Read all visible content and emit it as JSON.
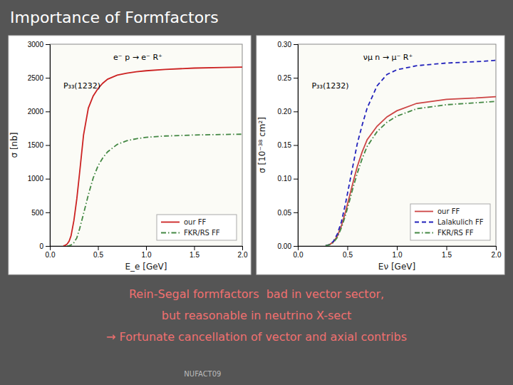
{
  "title": "Importance of Formfactors",
  "annotations": [
    "Rein-Segal formfactors  bad in vector sector,",
    "but reasonable in neutrino X-sect",
    "→ Fortunate cancellation of vector and axial contribs",
    "NUFACT09"
  ],
  "chart_data": [
    {
      "type": "line",
      "xlabel": "E_e [GeV]",
      "ylabel": "σ [nb]",
      "annotations": [
        "e⁻ p → e⁻ R⁺",
        "P₃₃(1232)"
      ],
      "xlim": [
        0,
        2
      ],
      "ylim": [
        0,
        3000
      ],
      "xticks": [
        {
          "value": 0,
          "label": "0.0"
        },
        {
          "value": 0.5,
          "label": "0.5"
        },
        {
          "value": 1,
          "label": "1.0"
        },
        {
          "value": 1.5,
          "label": "1.5"
        },
        {
          "value": 2,
          "label": "2.0"
        }
      ],
      "yticks": [
        0,
        500,
        1000,
        1500,
        2000,
        2500,
        3000
      ],
      "grid": false,
      "legend": "lower right",
      "series": [
        {
          "name": "our FF",
          "color": "#cc2222",
          "line_style": "solid",
          "x": [
            0.14,
            0.16,
            0.18,
            0.2,
            0.22,
            0.25,
            0.28,
            0.31,
            0.35,
            0.4,
            0.45,
            0.5,
            0.55,
            0.6,
            0.7,
            0.8,
            0.9,
            1.0,
            1.2,
            1.5,
            1.8,
            2.0
          ],
          "values": [
            2,
            10,
            30,
            70,
            150,
            380,
            700,
            1100,
            1650,
            2050,
            2230,
            2340,
            2420,
            2480,
            2540,
            2570,
            2590,
            2605,
            2625,
            2645,
            2655,
            2660
          ]
        },
        {
          "name": "FKR/RS FF",
          "color": "#448844",
          "line_style": "dashdot",
          "x": [
            0.18,
            0.2,
            0.22,
            0.25,
            0.28,
            0.31,
            0.35,
            0.4,
            0.45,
            0.5,
            0.55,
            0.6,
            0.7,
            0.8,
            0.9,
            1.0,
            1.2,
            1.5,
            1.8,
            2.0
          ],
          "values": [
            2,
            5,
            15,
            50,
            120,
            260,
            480,
            760,
            1010,
            1190,
            1310,
            1400,
            1510,
            1565,
            1595,
            1615,
            1635,
            1650,
            1658,
            1662
          ]
        }
      ]
    },
    {
      "type": "line",
      "xlabel": "Eν [GeV]",
      "ylabel": "σ [10⁻³⁸ cm²]",
      "annotations": [
        "νμ n → μ⁻ R⁺",
        "P₃₃(1232)"
      ],
      "xlim": [
        0,
        2
      ],
      "ylim": [
        0,
        0.3
      ],
      "xticks": [
        {
          "value": 0,
          "label": "0.0"
        },
        {
          "value": 0.5,
          "label": "0.5"
        },
        {
          "value": 1,
          "label": "1.0"
        },
        {
          "value": 1.5,
          "label": "1.5"
        },
        {
          "value": 2,
          "label": "2.0"
        }
      ],
      "yticks": [
        {
          "value": 0,
          "label": "0.00"
        },
        {
          "value": 0.05,
          "label": "0.05"
        },
        {
          "value": 0.1,
          "label": "0.10"
        },
        {
          "value": 0.15,
          "label": "0.15"
        },
        {
          "value": 0.2,
          "label": "0.20"
        },
        {
          "value": 0.25,
          "label": "0.25"
        },
        {
          "value": 0.3,
          "label": "0.30"
        }
      ],
      "grid": false,
      "legend": "lower right",
      "series": [
        {
          "name": "our FF",
          "color": "#cc4444",
          "line_style": "solid",
          "x": [
            0.28,
            0.32,
            0.36,
            0.4,
            0.44,
            0.48,
            0.52,
            0.56,
            0.6,
            0.65,
            0.7,
            0.8,
            0.9,
            1.0,
            1.2,
            1.5,
            1.8,
            2.0
          ],
          "values": [
            0.0005,
            0.002,
            0.006,
            0.015,
            0.03,
            0.05,
            0.073,
            0.096,
            0.118,
            0.14,
            0.158,
            0.178,
            0.192,
            0.201,
            0.212,
            0.218,
            0.22,
            0.222
          ]
        },
        {
          "name": "Lalakulich FF",
          "color": "#2222bb",
          "line_style": "dashed",
          "x": [
            0.28,
            0.32,
            0.36,
            0.4,
            0.44,
            0.48,
            0.52,
            0.56,
            0.6,
            0.65,
            0.7,
            0.8,
            0.9,
            1.0,
            1.2,
            1.5,
            1.8,
            2.0
          ],
          "values": [
            0.0005,
            0.002,
            0.007,
            0.018,
            0.036,
            0.062,
            0.092,
            0.122,
            0.152,
            0.18,
            0.205,
            0.238,
            0.255,
            0.262,
            0.268,
            0.272,
            0.274,
            0.276
          ]
        },
        {
          "name": "FKR/RS FF",
          "color": "#448844",
          "line_style": "dashdot",
          "x": [
            0.28,
            0.32,
            0.36,
            0.4,
            0.44,
            0.48,
            0.52,
            0.56,
            0.6,
            0.65,
            0.7,
            0.8,
            0.9,
            1.0,
            1.2,
            1.5,
            1.8,
            2.0
          ],
          "values": [
            0.0004,
            0.0018,
            0.005,
            0.013,
            0.027,
            0.045,
            0.066,
            0.088,
            0.108,
            0.13,
            0.148,
            0.17,
            0.184,
            0.193,
            0.204,
            0.21,
            0.213,
            0.215
          ]
        }
      ]
    }
  ]
}
